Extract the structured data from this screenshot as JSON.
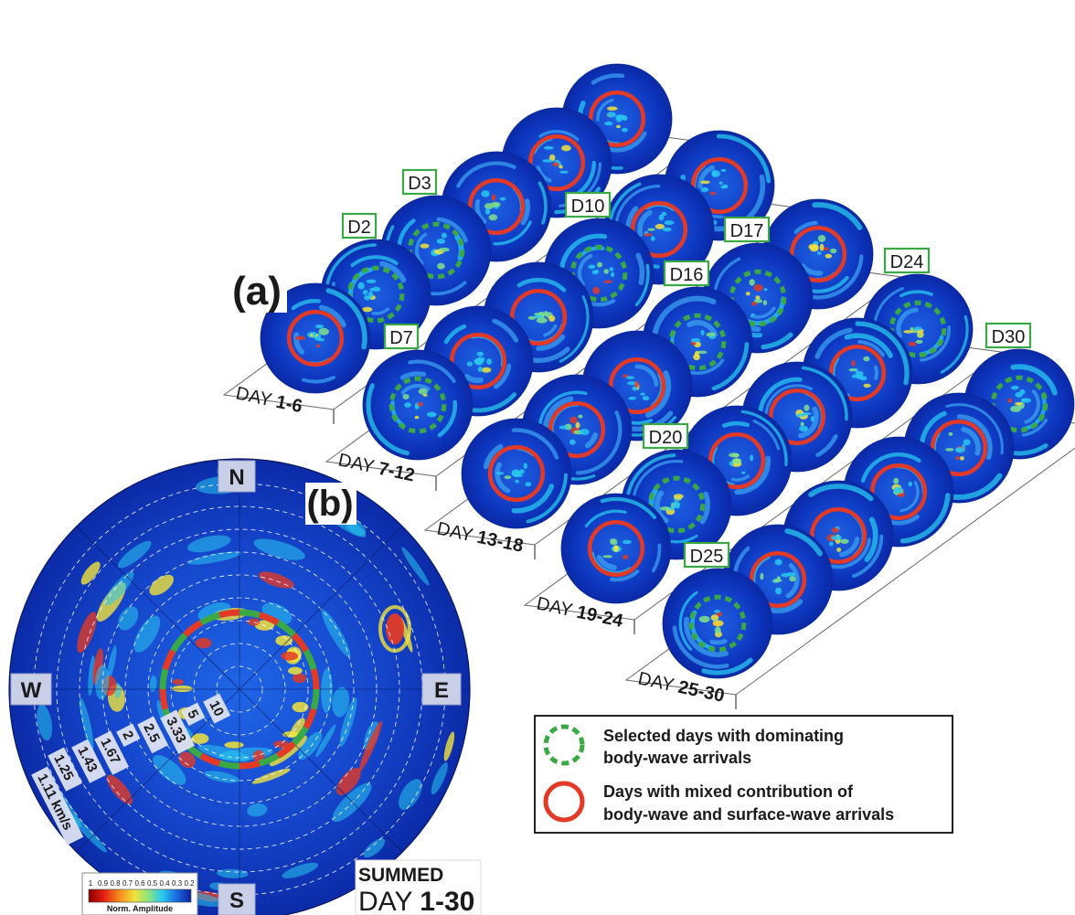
{
  "panel_a": {
    "label": "(a)",
    "rows": [
      {
        "label": "DAY ",
        "range": "1-6",
        "disks": [
          {
            "mark": "red"
          },
          {
            "mark": "green",
            "tag": "D2"
          },
          {
            "mark": "green",
            "tag": "D3"
          },
          {
            "mark": "red"
          },
          {
            "mark": "red"
          },
          {
            "mark": "red"
          }
        ]
      },
      {
        "label": "DAY ",
        "range": "7-12",
        "disks": [
          {
            "mark": "green",
            "tag": "D7"
          },
          {
            "mark": "red"
          },
          {
            "mark": "red"
          },
          {
            "mark": "green",
            "tag": "D10"
          },
          {
            "mark": "red"
          },
          {
            "mark": "red"
          }
        ]
      },
      {
        "label": "DAY ",
        "range": "13-18",
        "disks": [
          {
            "mark": "red"
          },
          {
            "mark": "red"
          },
          {
            "mark": "red"
          },
          {
            "mark": "green",
            "tag": "D16"
          },
          {
            "mark": "green",
            "tag": "D17"
          },
          {
            "mark": "red"
          }
        ]
      },
      {
        "label": "DAY ",
        "range": "19-24",
        "disks": [
          {
            "mark": "red"
          },
          {
            "mark": "green",
            "tag": "D20"
          },
          {
            "mark": "red"
          },
          {
            "mark": "red"
          },
          {
            "mark": "red"
          },
          {
            "mark": "green",
            "tag": "D24"
          }
        ]
      },
      {
        "label": "DAY ",
        "range": "25-30",
        "disks": [
          {
            "mark": "green",
            "tag": "D25"
          },
          {
            "mark": "red"
          },
          {
            "mark": "red"
          },
          {
            "mark": "red"
          },
          {
            "mark": "red"
          },
          {
            "mark": "green",
            "tag": "D30"
          }
        ]
      }
    ]
  },
  "panel_b": {
    "label": "(b)",
    "compass": {
      "n": "N",
      "s": "S",
      "e": "E",
      "w": "W"
    },
    "velocity_labels": [
      "10",
      "5",
      "3.33",
      "2.5",
      "2",
      "1.67",
      "1.43",
      "1.25",
      "1.11 km/s"
    ],
    "summed_title": "SUMMED",
    "summed_days_prefix": "DAY ",
    "summed_days_range": "1-30"
  },
  "colorbar": {
    "ticks": [
      "1",
      "0.9",
      "0.8",
      "0.7",
      "0.6",
      "0.5",
      "0.4",
      "0.3",
      "0.2"
    ],
    "label": "Norm. Amplitude"
  },
  "legend": {
    "green_text_1": "Selected days with dominating",
    "green_text_2": "body-wave arrivals",
    "red_text_1": "Days with mixed contribution of",
    "red_text_2": "body-wave and surface-wave arrivals"
  },
  "colors": {
    "background_blue": "#0a2fb8",
    "dark_blue": "#061c8a",
    "cyan": "#28c8f0",
    "yellow": "#f2e33a",
    "red": "#e23a26",
    "green_mark": "#3aa844",
    "tag_border": "#3aa844",
    "compass_box": "#c9cfe6"
  }
}
